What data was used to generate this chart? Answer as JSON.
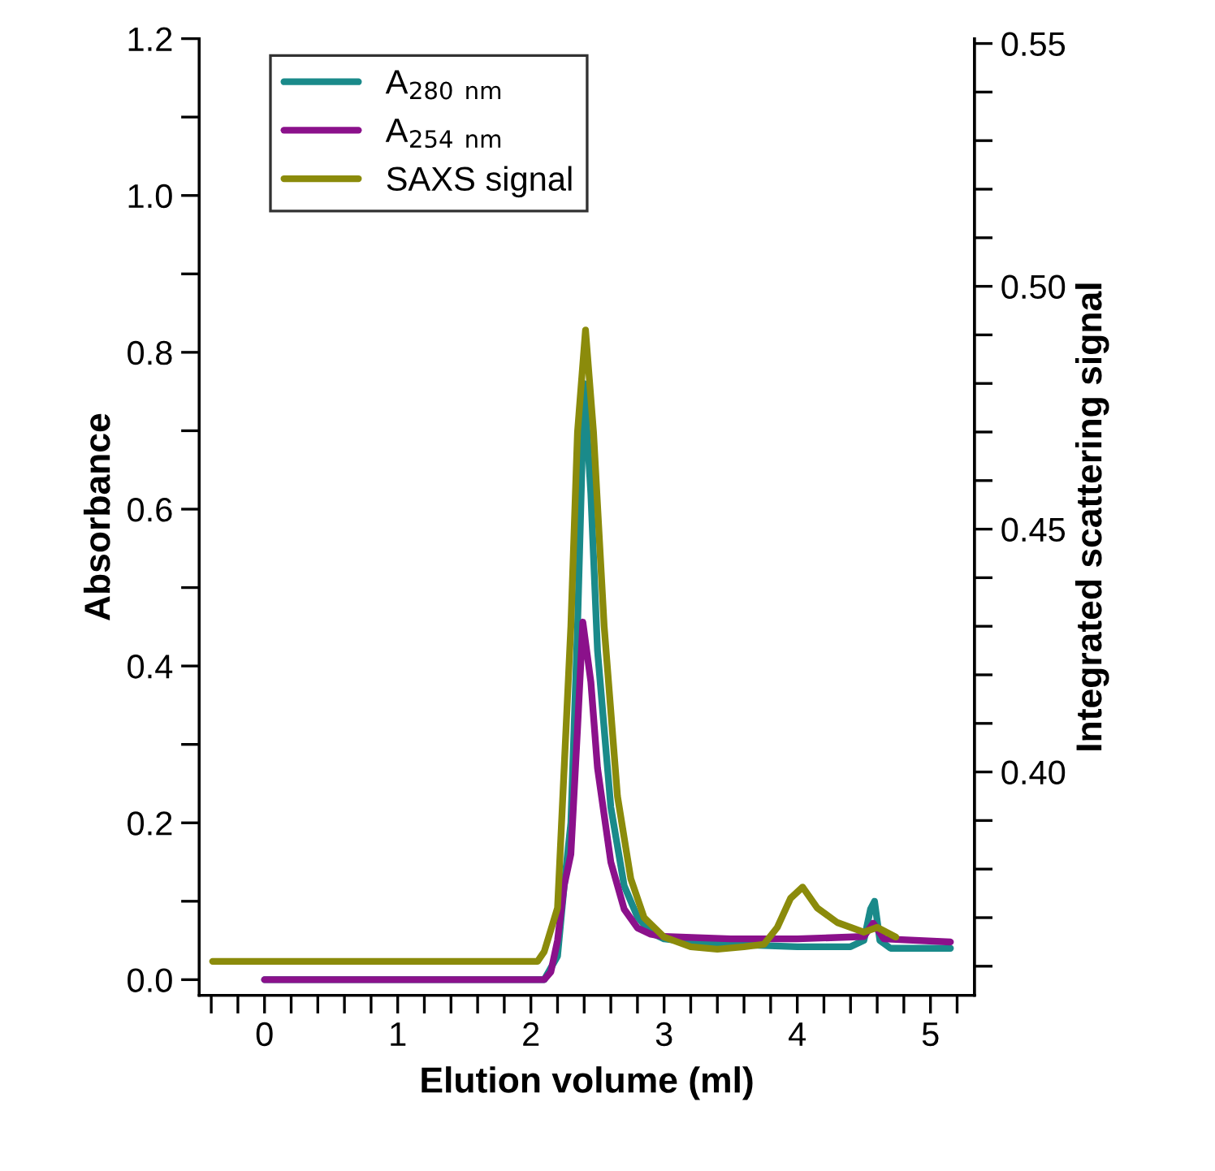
{
  "chart_data": {
    "type": "line",
    "xlabel": "Elution volume (ml)",
    "ylabel": "Absorbance",
    "y2label": "Integrated scattering signal",
    "xlim": [
      -0.49,
      5.33
    ],
    "xticks": [
      {
        "value": -0.4,
        "label": null
      },
      {
        "value": -0.2,
        "label": null
      },
      0,
      {
        "value": 0.2,
        "label": null
      },
      {
        "value": 0.4,
        "label": null
      },
      {
        "value": 0.6,
        "label": null
      },
      {
        "value": 0.8,
        "label": null
      },
      1,
      {
        "value": 1.2,
        "label": null
      },
      {
        "value": 1.4,
        "label": null
      },
      {
        "value": 1.6,
        "label": null
      },
      {
        "value": 1.8,
        "label": null
      },
      2,
      {
        "value": 2.2,
        "label": null
      },
      {
        "value": 2.4,
        "label": null
      },
      {
        "value": 2.6,
        "label": null
      },
      {
        "value": 2.8,
        "label": null
      },
      3,
      {
        "value": 3.2,
        "label": null
      },
      {
        "value": 3.4,
        "label": null
      },
      {
        "value": 3.6,
        "label": null
      },
      {
        "value": 3.8,
        "label": null
      },
      4,
      {
        "value": 4.2,
        "label": null
      },
      {
        "value": 4.4,
        "label": null
      },
      {
        "value": 4.6,
        "label": null
      },
      {
        "value": 4.8,
        "label": null
      },
      5,
      {
        "value": 5.2,
        "label": null
      }
    ],
    "ylim": [
      -0.02,
      1.2
    ],
    "yticks": [
      {
        "value": 0,
        "label": "0.0"
      },
      {
        "value": 0.1,
        "label": null
      },
      0.2,
      {
        "value": 0.3,
        "label": null
      },
      0.4,
      {
        "value": 0.5,
        "label": null
      },
      0.6,
      {
        "value": 0.7,
        "label": null
      },
      0.8,
      {
        "value": 0.9,
        "label": null
      },
      {
        "value": 1.0,
        "label": "1.0"
      },
      {
        "value": 1.1,
        "label": null
      },
      1.2
    ],
    "y2lim": [
      0.354,
      0.551
    ],
    "y2ticks": [
      {
        "value": 0.36,
        "label": null
      },
      {
        "value": 0.37,
        "label": null
      },
      {
        "value": 0.38,
        "label": null
      },
      {
        "value": 0.39,
        "label": null
      },
      {
        "value": 0.4,
        "label": "0.40"
      },
      {
        "value": 0.41,
        "label": null
      },
      {
        "value": 0.42,
        "label": null
      },
      {
        "value": 0.43,
        "label": null
      },
      {
        "value": 0.44,
        "label": null
      },
      0.45,
      {
        "value": 0.46,
        "label": null
      },
      {
        "value": 0.47,
        "label": null
      },
      {
        "value": 0.48,
        "label": null
      },
      {
        "value": 0.49,
        "label": null
      },
      {
        "value": 0.5,
        "label": "0.50"
      },
      {
        "value": 0.51,
        "label": null
      },
      {
        "value": 0.52,
        "label": null
      },
      {
        "value": 0.53,
        "label": null
      },
      {
        "value": 0.54,
        "label": null
      },
      0.55
    ],
    "legend": "top left",
    "grid": false,
    "line_style": "solid",
    "series": [
      {
        "name": "A$_{280 nm}$",
        "color": "#1a8a8a",
        "x": [
          0,
          2.1,
          2.2,
          2.25,
          2.3,
          2.35,
          2.4,
          2.45,
          2.5,
          2.6,
          2.7,
          2.8,
          2.9,
          3.0,
          3.2,
          3.5,
          4.0,
          4.4,
          4.5,
          4.55,
          4.58,
          4.62,
          4.7,
          5.0,
          5.15
        ],
        "values": [
          0,
          0,
          0.03,
          0.12,
          0.2,
          0.45,
          0.76,
          0.62,
          0.42,
          0.22,
          0.12,
          0.08,
          0.06,
          0.052,
          0.048,
          0.045,
          0.042,
          0.042,
          0.05,
          0.09,
          0.1,
          0.05,
          0.04,
          0.04,
          0.04
        ]
      },
      {
        "name": "A$_{254 nm}$",
        "color": "#8b118b",
        "x": [
          0,
          2.1,
          2.15,
          2.2,
          2.25,
          2.3,
          2.35,
          2.39,
          2.45,
          2.5,
          2.6,
          2.7,
          2.8,
          2.9,
          3.0,
          3.5,
          4.0,
          4.5,
          4.57,
          4.65,
          5.15
        ],
        "values": [
          0,
          0,
          0.01,
          0.05,
          0.12,
          0.16,
          0.32,
          0.456,
          0.38,
          0.27,
          0.15,
          0.09,
          0.066,
          0.058,
          0.055,
          0.052,
          0.052,
          0.055,
          0.072,
          0.052,
          0.048
        ]
      },
      {
        "name": "SAXS signal",
        "color": "#8b8b0b",
        "axis": "y2",
        "x": [
          -0.39,
          0.0,
          0.5,
          1.0,
          1.5,
          2.05,
          2.1,
          2.2,
          2.3,
          2.35,
          2.41,
          2.47,
          2.55,
          2.65,
          2.75,
          2.85,
          3.0,
          3.2,
          3.4,
          3.6,
          3.75,
          3.85,
          3.95,
          4.04,
          4.15,
          4.3,
          4.5,
          4.6,
          4.74
        ],
        "values": [
          0.361,
          0.361,
          0.361,
          0.361,
          0.361,
          0.361,
          0.363,
          0.372,
          0.43,
          0.47,
          0.491,
          0.47,
          0.43,
          0.395,
          0.378,
          0.37,
          0.366,
          0.364,
          0.3635,
          0.364,
          0.3645,
          0.368,
          0.374,
          0.3763,
          0.372,
          0.369,
          0.367,
          0.368,
          0.366
        ]
      }
    ]
  }
}
